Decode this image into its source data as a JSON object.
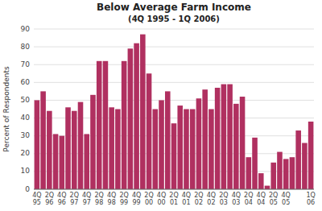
{
  "chart_data": {
    "type": "bar",
    "title": "Below Average Farm Income",
    "subtitle": "(4Q 1995 - 1Q 2006)",
    "y_label": "Percent of Respondents",
    "categories": [
      "4Q\n95",
      null,
      "2Q\n96",
      null,
      "4Q\n96",
      null,
      "2Q\n97",
      null,
      "4Q\n97",
      null,
      "2Q\n98",
      null,
      "4Q\n98",
      null,
      "2Q\n99",
      null,
      "4Q\n99",
      null,
      "2Q\n00",
      null,
      "4Q\n00",
      null,
      "2Q\n01",
      null,
      "4Q\n01",
      null,
      "2Q\n02",
      null,
      "4Q\n02",
      null,
      "2Q\n03",
      null,
      "4Q\n03",
      null,
      "2Q\n04",
      null,
      "4Q\n04",
      null,
      "2Q\n05",
      null,
      "4Q\n05",
      null,
      null,
      null,
      "1Q\n06"
    ],
    "values": [
      50,
      55,
      44,
      31,
      30,
      46,
      44,
      49,
      31,
      53,
      72,
      72,
      46,
      45,
      72,
      79,
      82,
      87,
      65,
      45,
      50,
      55,
      37,
      47,
      45,
      45,
      51,
      56,
      45,
      57,
      59,
      59,
      48,
      52,
      18,
      29,
      9,
      2,
      15,
      21,
      17,
      18,
      33,
      26,
      38
    ],
    "color": "#B03060",
    "ylim": [
      0,
      90
    ],
    "yticks": [
      0,
      10,
      20,
      30,
      40,
      50,
      60,
      70,
      80,
      90
    ],
    "grid": true
  }
}
